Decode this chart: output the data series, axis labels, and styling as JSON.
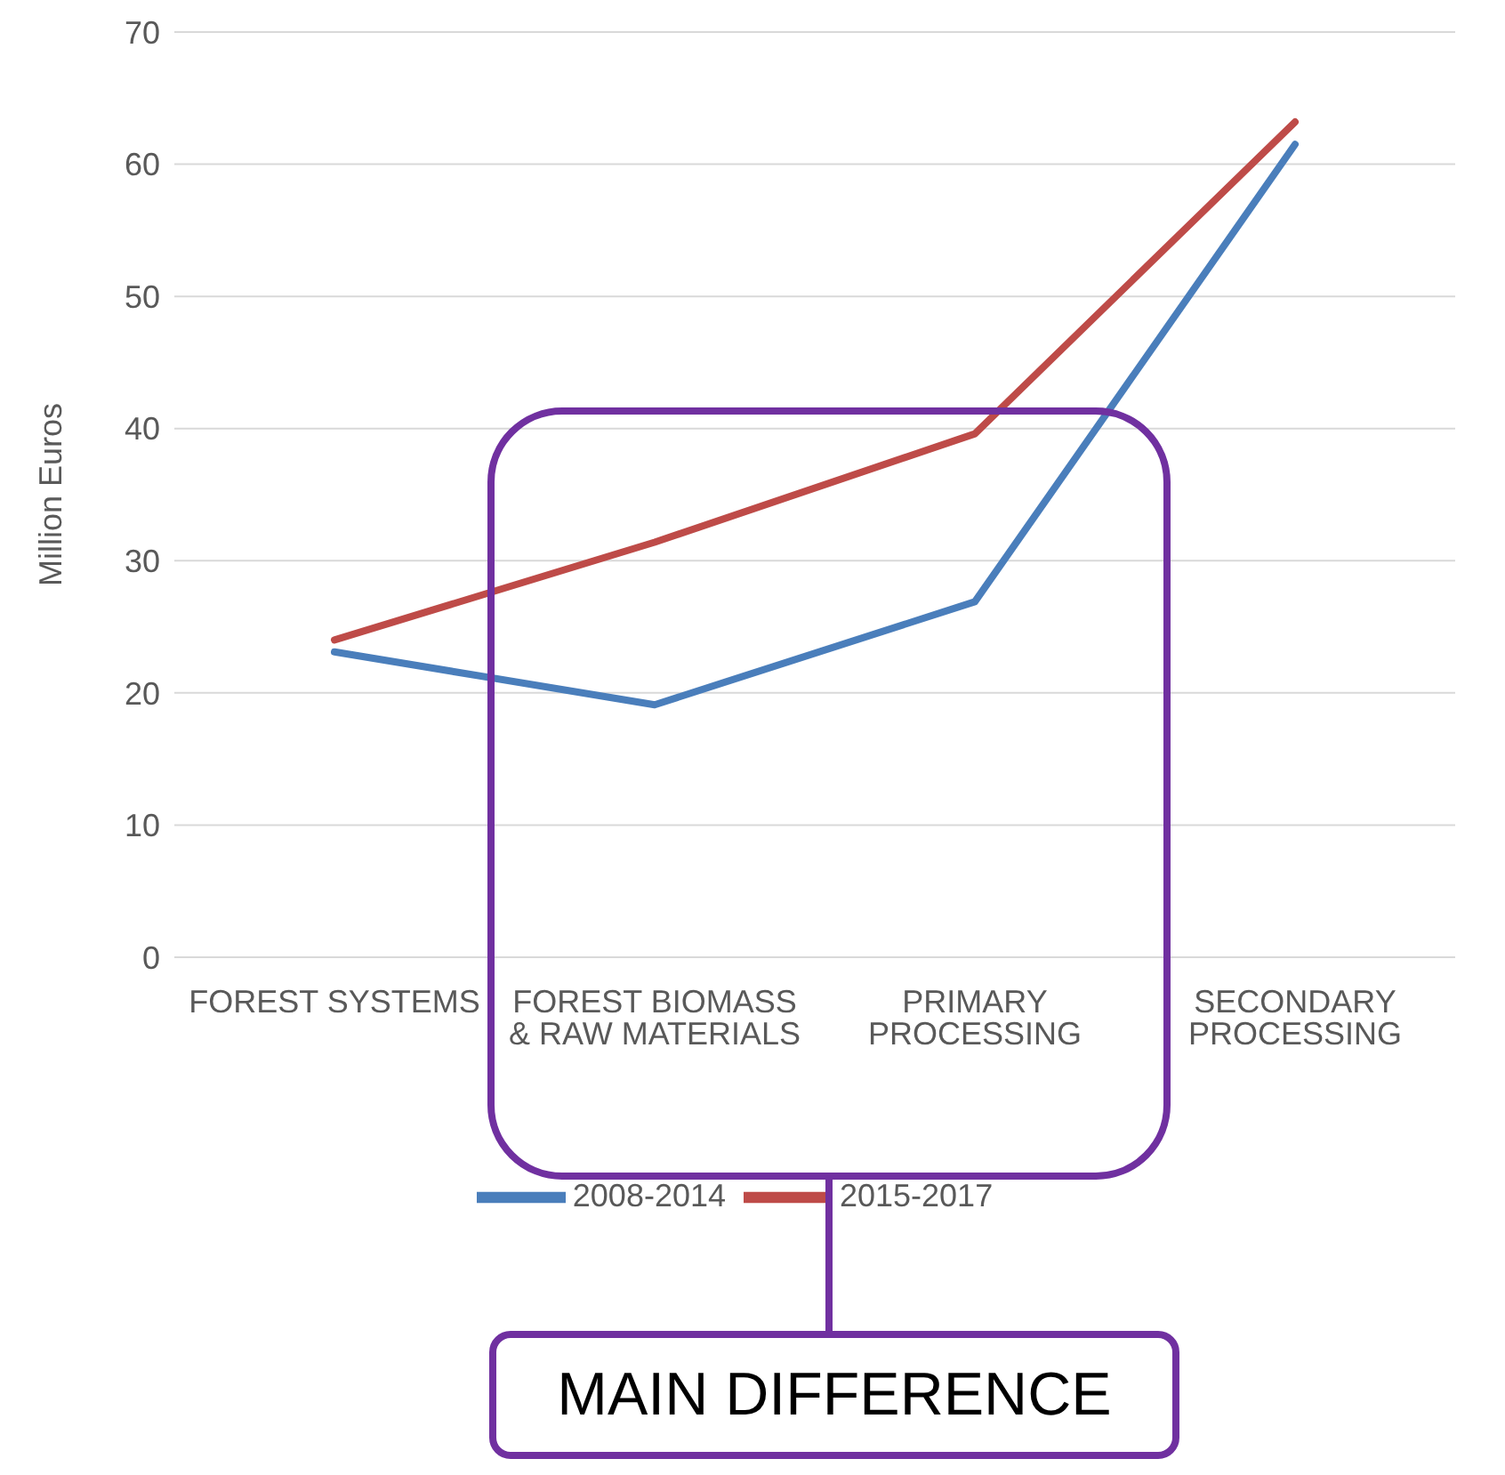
{
  "chart_data": {
    "type": "line",
    "ylabel": "Million Euros",
    "categories": [
      "FOREST SYSTEMS",
      "FOREST BIOMASS & RAW MATERIALS",
      "PRIMARY PROCESSING",
      "SECONDARY PROCESSING"
    ],
    "series": [
      {
        "name": "2008-2014",
        "color": "#4a7ebb",
        "values": [
          23.1,
          19.1,
          26.9,
          61.5
        ]
      },
      {
        "name": "2015-2017",
        "color": "#be4b48",
        "values": [
          24,
          31.4,
          39.6,
          63.2
        ]
      }
    ],
    "ylim": [
      0,
      70
    ],
    "yticks": [
      0,
      10,
      20,
      30,
      40,
      50,
      60,
      70
    ],
    "grid": "y",
    "legend": "bottom",
    "marker": "none",
    "line_style": "solid",
    "annotations": [
      "MAIN DIFFERENCE"
    ]
  }
}
